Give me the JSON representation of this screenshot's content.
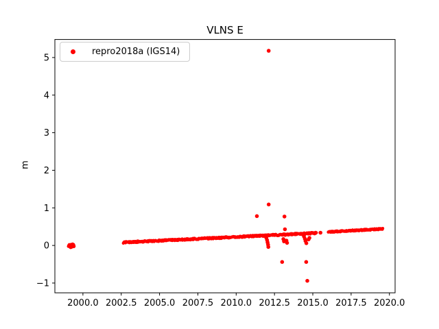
{
  "chart_data": {
    "type": "scatter",
    "title": "VLNS E",
    "xlabel": "",
    "ylabel": "m",
    "xlim": [
      1998.17,
      2020.37
    ],
    "ylim": [
      -1.26,
      5.48
    ],
    "xticks": [
      2000.0,
      2002.5,
      2005.0,
      2007.5,
      2010.0,
      2012.5,
      2015.0,
      2017.5,
      2020.0
    ],
    "xtick_labels": [
      "2000.0",
      "2002.5",
      "2005.0",
      "2007.5",
      "2010.0",
      "2012.5",
      "2015.0",
      "2017.5",
      "2020.0"
    ],
    "yticks": [
      -1,
      0,
      1,
      2,
      3,
      4,
      5
    ],
    "ytick_labels": [
      "−1",
      "0",
      "1",
      "2",
      "3",
      "4",
      "5"
    ],
    "grid": false,
    "legend_position": "upper left",
    "background_color": "#ffffff",
    "axis_color": "#000000",
    "series": [
      {
        "name": "repro2018a (IGS14)",
        "color": "#ff0000",
        "marker": "dot",
        "band_segments": [
          {
            "x_start": 1999.05,
            "x_end": 1999.42,
            "y_start": -0.02,
            "y_end": 0.01,
            "jitter": 0.05,
            "points": 30
          },
          {
            "x_start": 2002.65,
            "x_end": 2015.22,
            "y_start": 0.08,
            "y_end": 0.33,
            "jitter": 0.02,
            "points": 520
          },
          {
            "x_start": 2016.02,
            "x_end": 2019.55,
            "y_start": 0.36,
            "y_end": 0.44,
            "jitter": 0.016,
            "points": 160
          }
        ],
        "outliers": [
          [
            2012.12,
            5.18
          ],
          [
            2012.12,
            1.09
          ],
          [
            2011.35,
            0.78
          ],
          [
            2013.15,
            0.77
          ],
          [
            2013.18,
            0.43
          ],
          [
            2011.97,
            0.2
          ],
          [
            2012.02,
            0.14
          ],
          [
            2012.05,
            0.08
          ],
          [
            2012.08,
            0.02
          ],
          [
            2012.1,
            -0.04
          ],
          [
            2013.08,
            0.17
          ],
          [
            2013.12,
            0.11
          ],
          [
            2013.28,
            0.13
          ],
          [
            2013.32,
            0.07
          ],
          [
            2014.42,
            0.24
          ],
          [
            2014.48,
            0.18
          ],
          [
            2014.52,
            0.12
          ],
          [
            2014.58,
            0.06
          ],
          [
            2014.72,
            0.16
          ],
          [
            2014.78,
            0.2
          ],
          [
            2013.0,
            -0.44
          ],
          [
            2014.57,
            -0.44
          ],
          [
            2014.64,
            -0.94
          ],
          [
            2015.5,
            0.34
          ]
        ]
      }
    ]
  }
}
